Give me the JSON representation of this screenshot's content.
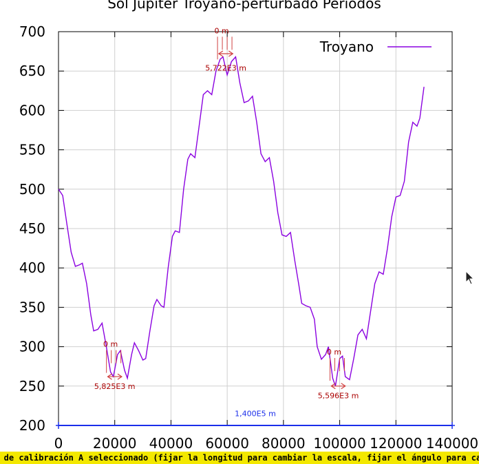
{
  "chart_data": {
    "type": "line",
    "title": "Sol Jupiter Troyano-perturbado Periodos",
    "xlim": [
      0,
      140000
    ],
    "ylim": [
      200,
      700
    ],
    "x_ticks": [
      0,
      20000,
      40000,
      60000,
      80000,
      100000,
      120000,
      140000
    ],
    "y_ticks": [
      200,
      250,
      300,
      350,
      400,
      450,
      500,
      550,
      600,
      650,
      700
    ],
    "grid": true,
    "legend": {
      "position": "top-right",
      "entries": [
        "Troyano"
      ]
    },
    "series": [
      {
        "name": "Troyano",
        "color": "#8a00e0",
        "points": [
          [
            0,
            500
          ],
          [
            1500,
            492
          ],
          [
            3000,
            455
          ],
          [
            4500,
            420
          ],
          [
            6000,
            402
          ],
          [
            7500,
            404
          ],
          [
            8500,
            406
          ],
          [
            10000,
            380
          ],
          [
            11500,
            340
          ],
          [
            12500,
            320
          ],
          [
            14000,
            322
          ],
          [
            15500,
            330
          ],
          [
            17000,
            300
          ],
          [
            18500,
            268
          ],
          [
            19500,
            262
          ],
          [
            21000,
            290
          ],
          [
            22000,
            295
          ],
          [
            23500,
            270
          ],
          [
            24500,
            260
          ],
          [
            26000,
            290
          ],
          [
            27000,
            305
          ],
          [
            28500,
            295
          ],
          [
            30000,
            283
          ],
          [
            31000,
            285
          ],
          [
            32500,
            320
          ],
          [
            34000,
            352
          ],
          [
            35000,
            360
          ],
          [
            36500,
            352
          ],
          [
            37500,
            350
          ],
          [
            39000,
            400
          ],
          [
            40500,
            440
          ],
          [
            41500,
            447
          ],
          [
            43000,
            445
          ],
          [
            44500,
            500
          ],
          [
            46000,
            538
          ],
          [
            47000,
            545
          ],
          [
            48500,
            540
          ],
          [
            50000,
            580
          ],
          [
            51500,
            620
          ],
          [
            53000,
            625
          ],
          [
            54500,
            620
          ],
          [
            56000,
            650
          ],
          [
            57500,
            665
          ],
          [
            58500,
            668
          ],
          [
            60000,
            645
          ],
          [
            61500,
            662
          ],
          [
            63000,
            668
          ],
          [
            64500,
            635
          ],
          [
            66000,
            610
          ],
          [
            67500,
            612
          ],
          [
            69000,
            618
          ],
          [
            70500,
            585
          ],
          [
            72000,
            545
          ],
          [
            73500,
            535
          ],
          [
            75000,
            540
          ],
          [
            76500,
            510
          ],
          [
            78000,
            470
          ],
          [
            79500,
            442
          ],
          [
            81000,
            440
          ],
          [
            82500,
            445
          ],
          [
            84000,
            410
          ],
          [
            85500,
            378
          ],
          [
            86500,
            355
          ],
          [
            88000,
            352
          ],
          [
            89500,
            350
          ],
          [
            91000,
            335
          ],
          [
            92000,
            300
          ],
          [
            93500,
            284
          ],
          [
            95000,
            290
          ],
          [
            96000,
            300
          ],
          [
            97500,
            260
          ],
          [
            98500,
            250
          ],
          [
            100000,
            285
          ],
          [
            101000,
            288
          ],
          [
            102000,
            262
          ],
          [
            103500,
            258
          ],
          [
            105000,
            285
          ],
          [
            106500,
            315
          ],
          [
            108000,
            322
          ],
          [
            109500,
            310
          ],
          [
            111000,
            345
          ],
          [
            112500,
            380
          ],
          [
            114000,
            395
          ],
          [
            115500,
            392
          ],
          [
            117000,
            425
          ],
          [
            118500,
            465
          ],
          [
            120000,
            490
          ],
          [
            121500,
            492
          ],
          [
            123000,
            510
          ],
          [
            124500,
            560
          ],
          [
            126000,
            585
          ],
          [
            127500,
            580
          ],
          [
            128500,
            590
          ],
          [
            130000,
            630
          ]
        ]
      }
    ],
    "annotations": [
      {
        "type": "angle",
        "label": "0 m",
        "x": 59000,
        "y": 698
      },
      {
        "type": "length",
        "label": "5,722E3 m",
        "x": 59500,
        "y": 672,
        "x1": 57000,
        "x2": 62000,
        "label_y": 654
      },
      {
        "type": "angle",
        "label": "0 m",
        "x": 19500,
        "y": 300
      },
      {
        "type": "length",
        "label": "5,825E3 m",
        "x": 20000,
        "y": 262,
        "x1": 17500,
        "x2": 22500,
        "label_y": 250
      },
      {
        "type": "angle",
        "label": "0 m",
        "x": 99000,
        "y": 290
      },
      {
        "type": "length",
        "label": "5,596E3 m",
        "x": 99500,
        "y": 250,
        "x1": 97000,
        "x2": 102000,
        "label_y": 238
      },
      {
        "type": "baseline",
        "label": "1,400E5 m",
        "x": 70000,
        "y": 210
      }
    ]
  },
  "status_bar": {
    "text": "ra de calibración A seleccionado (fijar la longitud para cambiar la escala, fijar el ángulo para cambiar"
  }
}
